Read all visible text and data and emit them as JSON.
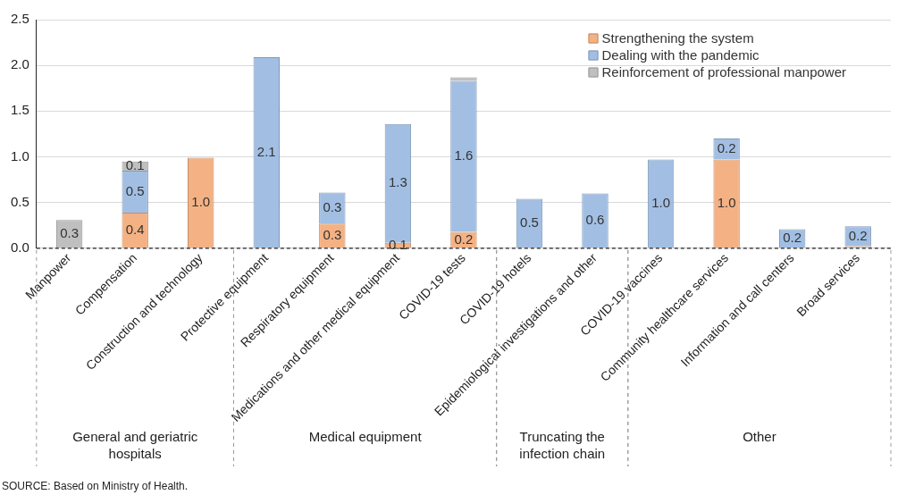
{
  "chart_data": {
    "type": "bar",
    "stacked": true,
    "categories": [
      "Manpower",
      "Compensation",
      "Construction and technology",
      "Protective equipment",
      "Respiratory equipment",
      "Medications and other medical equipment",
      "COVID-19 tests",
      "COVID-19 hotels",
      "Epidemiological investigations and other",
      "COVID-19 vaccines",
      "Community healthcare services",
      "Information and call centers",
      "Broad services"
    ],
    "series": [
      {
        "name": "Strengthening the system",
        "color": "#f4b183",
        "values": [
          null,
          0.39,
          0.99,
          null,
          0.27,
          0.06,
          0.18,
          null,
          null,
          null,
          0.97,
          null,
          0.02
        ],
        "value_labels": [
          null,
          "0.4",
          "1.0",
          null,
          "0.3",
          "0.1",
          "0.2",
          null,
          null,
          null,
          "1.0",
          null,
          null
        ]
      },
      {
        "name": "Dealing with the pandemic",
        "color": "#a2bfe3",
        "values": [
          null,
          0.46,
          null,
          2.09,
          0.34,
          1.3,
          1.65,
          0.54,
          0.6,
          0.97,
          0.23,
          0.21,
          0.22
        ],
        "value_labels": [
          null,
          "0.5",
          null,
          "2.1",
          "0.3",
          "1.3",
          "1.6",
          "0.5",
          "0.6",
          "1.0",
          "0.2",
          "0.2",
          "0.2"
        ]
      },
      {
        "name": "Reinforcement of professional manpower",
        "color": "#bfbfbf",
        "values": [
          0.31,
          0.1,
          null,
          null,
          null,
          null,
          0.04,
          null,
          null,
          null,
          null,
          null,
          null
        ],
        "value_labels": [
          "0.3",
          "0.1",
          null,
          null,
          null,
          null,
          null,
          null,
          null,
          null,
          null,
          null,
          null
        ]
      }
    ],
    "ylim": [
      0,
      2.5
    ],
    "yticks": [
      {
        "value": 0,
        "label": "0.0"
      },
      {
        "value": 0.5,
        "label": "0.5"
      },
      {
        "value": 1,
        "label": "1.0"
      },
      {
        "value": 1.5,
        "label": "1.5"
      },
      {
        "value": 2,
        "label": "2.0"
      },
      {
        "value": 2.5,
        "label": "2.5"
      }
    ],
    "grid": "y",
    "legend": "top right",
    "annotations": [
      "General and geriatric hospitals",
      "Medical equipment",
      "Truncating the infection chain",
      "Other",
      "SOURCE: Based on Ministry of Health."
    ]
  }
}
